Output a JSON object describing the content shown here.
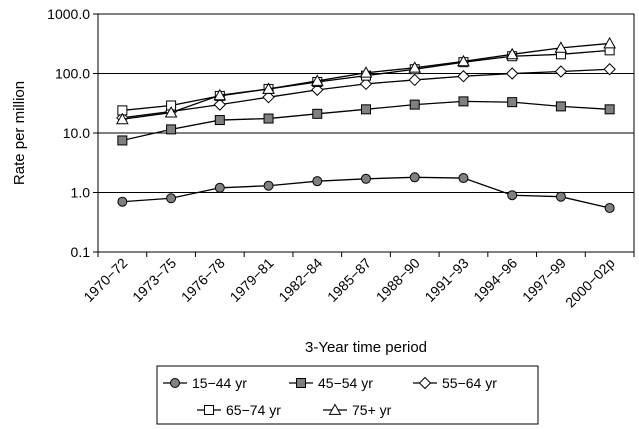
{
  "chart_data": {
    "type": "line",
    "xlabel": "3-Year time period",
    "ylabel": "Rate per million",
    "y_scale": "log",
    "ylim": [
      0.1,
      1000
    ],
    "y_ticks": [
      "0.1",
      "1.0",
      "10.0",
      "100.0",
      "1000.0"
    ],
    "y_gridlines": true,
    "legend_position": "bottom",
    "categories": [
      "1970−72",
      "1973−75",
      "1976−78",
      "1979−81",
      "1982−84",
      "1985−87",
      "1988−90",
      "1991−93",
      "1994−96",
      "1997−99",
      "2000−02p"
    ],
    "series": [
      {
        "name": "15−44 yr",
        "marker": "circle",
        "fill": "#808080",
        "values": [
          0.7,
          0.8,
          1.2,
          1.3,
          1.55,
          1.7,
          1.8,
          1.75,
          0.9,
          0.85,
          0.55
        ]
      },
      {
        "name": "45−54 yr",
        "marker": "square",
        "fill": "#808080",
        "values": [
          7.5,
          11.5,
          16.5,
          17.5,
          21,
          25,
          30,
          34,
          33,
          28,
          25
        ]
      },
      {
        "name": "55−64 yr",
        "marker": "diamond",
        "fill": "#ffffff",
        "values": [
          18,
          23,
          30,
          40,
          53,
          67,
          78,
          90,
          100,
          108,
          118
        ]
      },
      {
        "name": "65−74 yr",
        "marker": "square",
        "fill": "#ffffff",
        "values": [
          24,
          29,
          42,
          55,
          72,
          92,
          118,
          155,
          195,
          210,
          245
        ]
      },
      {
        "name": "75+ yr",
        "marker": "triangle",
        "fill": "#ffffff",
        "values": [
          17,
          22,
          43,
          55,
          75,
          103,
          125,
          160,
          210,
          270,
          320
        ]
      }
    ]
  }
}
